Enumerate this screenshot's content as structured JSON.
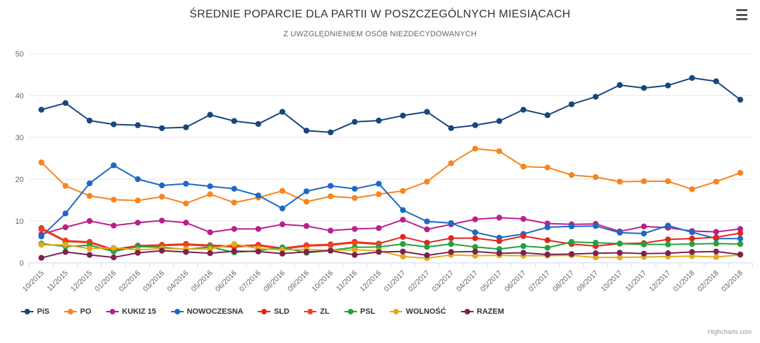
{
  "chart": {
    "menu_icon": "hamburger-icon",
    "credits_label": "Highcharts.com"
  },
  "chart_data": {
    "type": "line",
    "title": "ŚREDNIE POPARCIE DLA PARTII W POSZCZEGÓLNYCH MIESIĄCACH",
    "subtitle": "Z UWZGLĘDNIENIEM OSÓB NIEZDECYDOWANYCH",
    "xlabel": "",
    "ylabel": "",
    "ylim": [
      0,
      50
    ],
    "yticks": [
      0,
      10,
      20,
      30,
      40,
      50
    ],
    "grid": true,
    "legend_position": "bottom-left",
    "categories": [
      "10/2015",
      "11/2015",
      "12/2015",
      "01/2016",
      "02/2016",
      "03/2016",
      "04/2016",
      "05/2016",
      "06/2016",
      "07/2016",
      "08/2016",
      "09/2016",
      "10/2016",
      "11/2016",
      "12/2016",
      "01/2017",
      "02/2017",
      "03/2017",
      "04/2017",
      "05/2017",
      "06/2017",
      "07/2017",
      "08/2017",
      "09/2017",
      "10/2017",
      "11/2017",
      "12/2017",
      "01/2018",
      "02/2018",
      "03/2018"
    ],
    "series": [
      {
        "name": "PiS",
        "color": "#16477c",
        "values": [
          36.6,
          38.2,
          34.0,
          33.1,
          32.9,
          32.2,
          32.4,
          35.4,
          33.9,
          33.2,
          36.1,
          31.6,
          31.2,
          33.7,
          34.0,
          35.2,
          36.1,
          32.2,
          32.9,
          33.9,
          36.6,
          35.3,
          37.9,
          39.7,
          42.5,
          41.8,
          42.4,
          44.2,
          43.4,
          39.0
        ]
      },
      {
        "name": "PO",
        "color": "#f8841e",
        "values": [
          24.0,
          18.4,
          16.0,
          15.1,
          14.9,
          15.8,
          14.2,
          16.4,
          14.4,
          15.6,
          17.2,
          14.6,
          15.9,
          15.5,
          16.4,
          17.2,
          19.4,
          23.8,
          27.3,
          26.7,
          23.0,
          22.8,
          21.0,
          20.5,
          19.4,
          19.5,
          19.5,
          17.6,
          19.4,
          21.5
        ]
      },
      {
        "name": "KUKIZ 15",
        "color": "#b9208b",
        "values": [
          6.8,
          8.5,
          10.0,
          8.9,
          9.6,
          10.1,
          9.6,
          7.3,
          8.1,
          8.1,
          9.2,
          8.8,
          7.7,
          8.1,
          8.3,
          10.3,
          8.0,
          9.2,
          10.4,
          10.8,
          10.5,
          9.4,
          9.2,
          9.3,
          7.5,
          8.7,
          8.4,
          7.6,
          7.4,
          8.1
        ]
      },
      {
        "name": "NOWOCZESNA",
        "color": "#1d68c6",
        "values": [
          6.3,
          11.8,
          19.0,
          23.3,
          20.0,
          18.5,
          18.9,
          18.3,
          17.7,
          16.1,
          13.0,
          17.1,
          18.4,
          17.7,
          18.9,
          12.6,
          9.9,
          9.5,
          7.3,
          6.0,
          6.9,
          8.5,
          8.7,
          8.8,
          7.2,
          7.0,
          8.9,
          7.3,
          5.8,
          5.8
        ]
      },
      {
        "name": "SLD",
        "color": "#e1261d",
        "values": [
          8.3,
          5.3,
          5.0,
          3.2,
          4.1,
          4.3,
          4.5,
          4.2,
          4.0,
          4.3,
          3.5,
          4.2,
          4.4,
          5.0,
          4.6,
          6.2,
          4.8,
          5.9,
          5.9,
          5.2,
          6.4,
          5.4,
          4.5,
          4.0,
          4.6,
          4.7,
          5.6,
          5.8,
          6.1,
          7.1
        ]
      },
      {
        "name": "ZL",
        "color": "#ef4123",
        "values": [
          8.0,
          5.1,
          4.8,
          3.0,
          3.9,
          4.1,
          4.3,
          4.0,
          3.8,
          4.1,
          3.3,
          4.0,
          4.2,
          4.8,
          4.4,
          null,
          null,
          null,
          null,
          null,
          null,
          null,
          null,
          null,
          null,
          null,
          null,
          null,
          null,
          null
        ]
      },
      {
        "name": "PSL",
        "color": "#23a23d",
        "values": [
          4.6,
          3.9,
          4.2,
          2.7,
          3.9,
          3.7,
          3.2,
          3.8,
          2.5,
          2.9,
          3.7,
          2.4,
          3.0,
          3.7,
          3.8,
          4.5,
          3.8,
          4.5,
          3.8,
          3.3,
          4.0,
          3.6,
          5.0,
          4.8,
          4.6,
          4.4,
          4.4,
          4.5,
          4.6,
          4.5
        ]
      },
      {
        "name": "WOLNOŚĆ",
        "color": "#e2ab1b",
        "values": [
          4.3,
          4.3,
          3.4,
          3.6,
          3.1,
          3.4,
          3.3,
          3.3,
          4.5,
          3.4,
          3.1,
          3.2,
          3.0,
          3.1,
          2.9,
          1.5,
          1.1,
          1.9,
          1.7,
          1.8,
          1.7,
          1.7,
          1.8,
          1.3,
          1.3,
          1.4,
          1.5,
          1.6,
          1.4,
          1.9
        ]
      },
      {
        "name": "RAZEM",
        "color": "#7c2150",
        "values": [
          1.2,
          2.6,
          1.9,
          1.3,
          2.4,
          2.9,
          2.6,
          2.3,
          2.8,
          2.7,
          2.2,
          2.6,
          2.9,
          1.9,
          2.6,
          2.7,
          1.8,
          2.6,
          2.7,
          2.3,
          2.4,
          2.0,
          2.1,
          2.3,
          2.4,
          2.2,
          2.3,
          2.6,
          2.7,
          2.0
        ]
      }
    ],
    "axis_colors": {
      "label": "#666666",
      "grid": "#e6e6e6",
      "axis_line": "#ccd6eb",
      "tick": "#ccd6eb"
    }
  }
}
